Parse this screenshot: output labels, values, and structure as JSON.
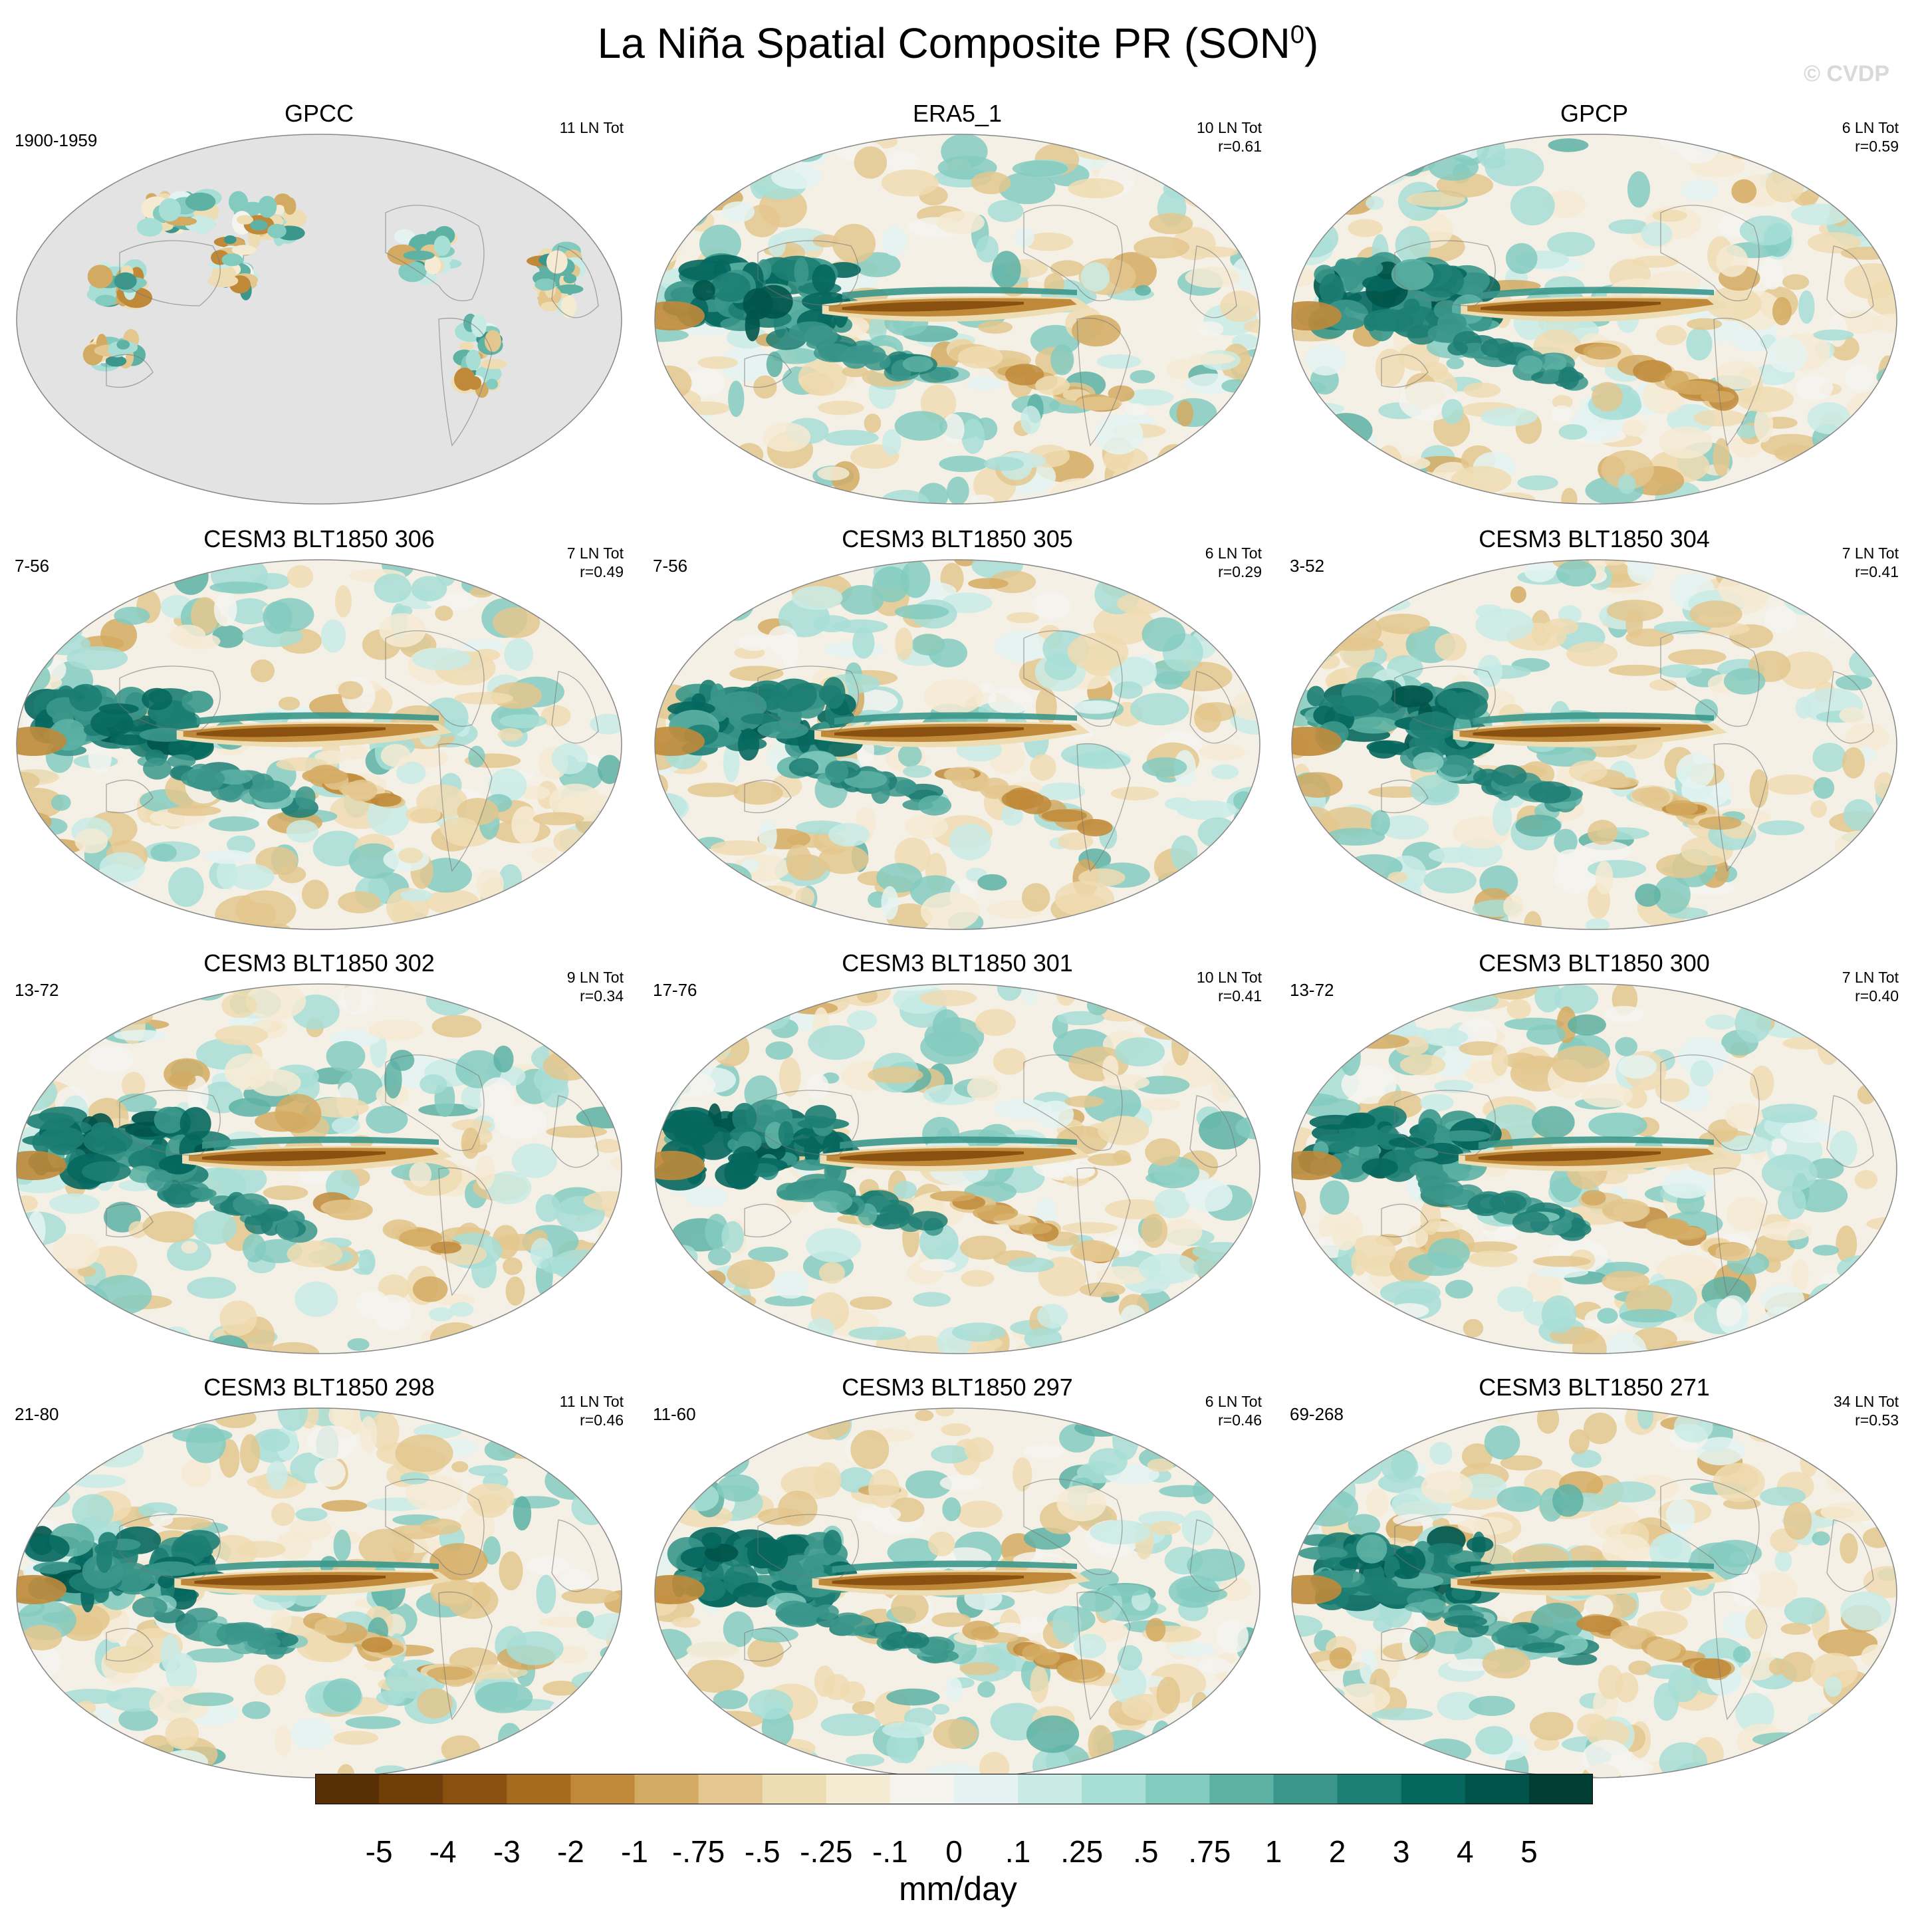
{
  "title": "La Niña Spatial Composite PR (SON",
  "title_superscript": "0",
  "title_close": ")",
  "copyright": "© CVDP",
  "panels": [
    {
      "title": "GPCC",
      "left": "1900-1959",
      "right1": "11 LN Tot",
      "right2": "",
      "style": "gpcc",
      "seed": 11
    },
    {
      "title": "ERA5_1",
      "left": "",
      "right1": "10 LN Tot",
      "right2": "r=0.61",
      "style": "obs",
      "seed": 23
    },
    {
      "title": "GPCP",
      "left": "",
      "right1": "6 LN Tot",
      "right2": "r=0.59",
      "style": "obs",
      "seed": 37
    },
    {
      "title": "CESM3 BLT1850 306",
      "left": "7-56",
      "right1": "7 LN Tot",
      "right2": "r=0.49",
      "style": "model",
      "seed": 41
    },
    {
      "title": "CESM3 BLT1850 305",
      "left": "7-56",
      "right1": "6 LN Tot",
      "right2": "r=0.29",
      "style": "model",
      "seed": 53
    },
    {
      "title": "CESM3 BLT1850 304",
      "left": "3-52",
      "right1": "7 LN Tot",
      "right2": "r=0.41",
      "style": "model",
      "seed": 67
    },
    {
      "title": "CESM3 BLT1850 302",
      "left": "13-72",
      "right1": "9 LN Tot",
      "right2": "r=0.34",
      "style": "model",
      "seed": 71
    },
    {
      "title": "CESM3 BLT1850 301",
      "left": "17-76",
      "right1": "10 LN Tot",
      "right2": "r=0.41",
      "style": "model",
      "seed": 83
    },
    {
      "title": "CESM3 BLT1850 300",
      "left": "13-72",
      "right1": "7 LN Tot",
      "right2": "r=0.40",
      "style": "model",
      "seed": 97
    },
    {
      "title": "CESM3 BLT1850 298",
      "left": "21-80",
      "right1": "11 LN Tot",
      "right2": "r=0.46",
      "style": "model",
      "seed": 101
    },
    {
      "title": "CESM3 BLT1850 297",
      "left": "11-60",
      "right1": "6 LN Tot",
      "right2": "r=0.46",
      "style": "model",
      "seed": 113
    },
    {
      "title": "CESM3 BLT1850 271",
      "left": "69-268",
      "right1": "34 LN Tot",
      "right2": "r=0.53",
      "style": "model",
      "seed": 127
    }
  ],
  "colorbar": {
    "units": "mm/day",
    "labels": [
      "-5",
      "-4",
      "-3",
      "-2",
      "-1",
      "-.75",
      "-.5",
      "-.25",
      "-.1",
      "0",
      ".1",
      ".25",
      ".5",
      ".75",
      "1",
      "2",
      "3",
      "4",
      "5"
    ],
    "colors": [
      "#573006",
      "#6f3e09",
      "#8a5010",
      "#a66b1f",
      "#c0893a",
      "#d3aa62",
      "#e3c78e",
      "#eedcb2",
      "#f5ead2",
      "#f5f3ee",
      "#e4f3f1",
      "#c9ebe6",
      "#a7ded6",
      "#84cbbf",
      "#5db2a4",
      "#3b978b",
      "#1d7e73",
      "#05675e",
      "#01544a",
      "#003d33"
    ]
  },
  "land_mask_color": "#e3e3e3"
}
